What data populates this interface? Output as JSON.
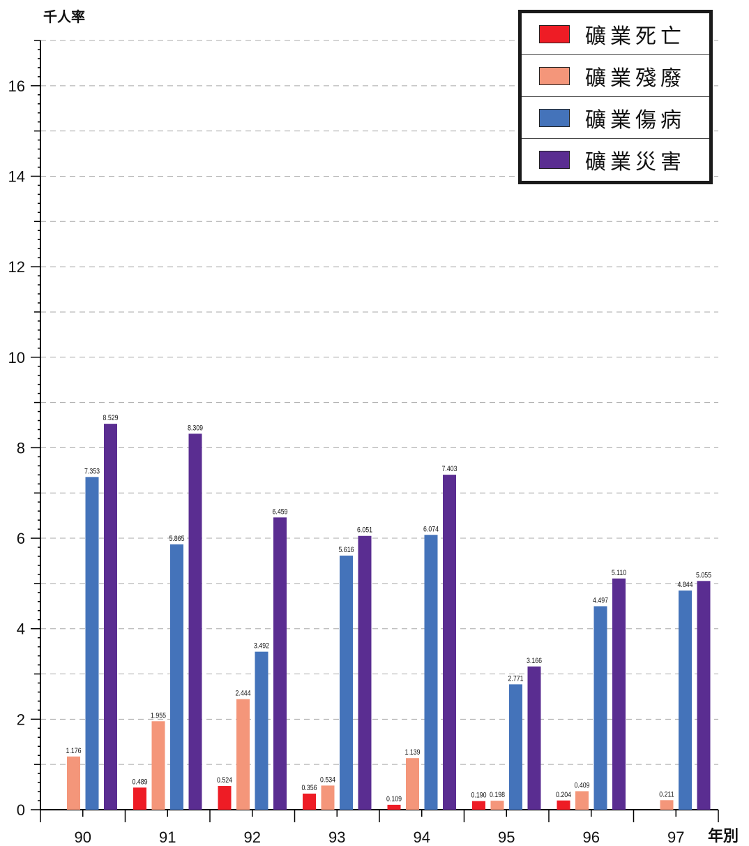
{
  "y_axis_title": "千人率",
  "x_axis_title": "年別",
  "chart_data": {
    "type": "bar",
    "categories": [
      "90",
      "91",
      "92",
      "93",
      "94",
      "95",
      "96",
      "97"
    ],
    "ylim": [
      0,
      17
    ],
    "y_ticks": [
      0,
      2,
      4,
      6,
      8,
      10,
      12,
      14,
      16
    ],
    "grid": true,
    "legend_position": "top-right",
    "series": [
      {
        "name": "礦業死亡",
        "color": "#ee1c25",
        "values": [
          null,
          0.489,
          0.524,
          0.356,
          0.109,
          0.19,
          0.204,
          null
        ],
        "labels": [
          "",
          "0.489",
          "0.524",
          "0.356",
          "0.109",
          "0.190",
          "0.204",
          ""
        ]
      },
      {
        "name": "礦業殘廢",
        "color": "#f4967a",
        "values": [
          1.176,
          1.955,
          2.444,
          0.534,
          1.139,
          0.198,
          0.409,
          0.211
        ],
        "labels": [
          "1.176",
          "1.955",
          "2.444",
          "0.534",
          "1.139",
          "0.198",
          "0.409",
          "0.211"
        ]
      },
      {
        "name": "礦業傷病",
        "color": "#4473ba",
        "values": [
          7.353,
          5.865,
          3.492,
          5.616,
          6.074,
          2.771,
          4.497,
          4.844
        ],
        "labels": [
          "7.353",
          "5.865",
          "3.492",
          "5.616",
          "6.074",
          "2.771",
          "4.497",
          "4.844"
        ]
      },
      {
        "name": "礦業災害",
        "color": "#5a2d91",
        "values": [
          8.529,
          8.309,
          6.459,
          6.051,
          7.403,
          3.166,
          5.11,
          5.055
        ],
        "labels": [
          "8.529",
          "8.309",
          "6.459",
          "6.051",
          "7.403",
          "3.166",
          "5.110",
          "5.055"
        ]
      }
    ]
  }
}
